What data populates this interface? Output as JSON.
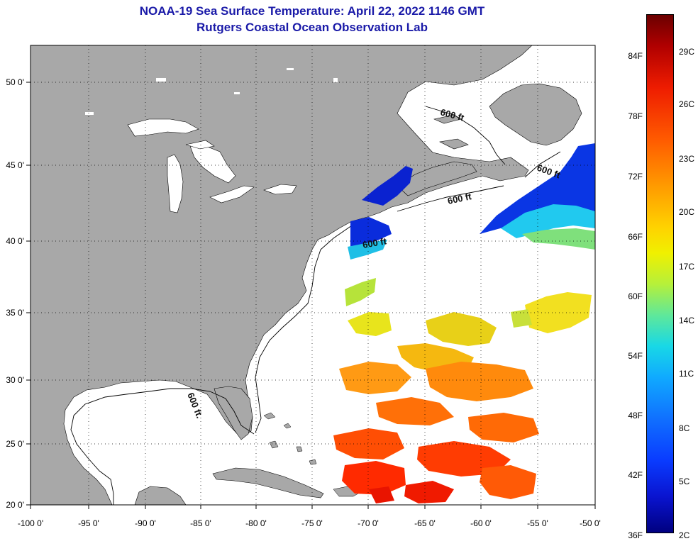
{
  "title": {
    "line1": "NOAA-19 Sea Surface Temperature:  April 22, 2022 1146 GMT",
    "line2": "Rutgers Coastal Ocean Observation Lab"
  },
  "map": {
    "lon_labels": [
      "-100 0'",
      "-95 0'",
      "-90 0'",
      "-85 0'",
      "-80 0'",
      "-75 0'",
      "-70 0'",
      "-65 0'",
      "-60 0'",
      "-55 0'",
      "-50 0'"
    ],
    "lat_labels": [
      "50 0'",
      "45 0'",
      "40 0'",
      "35 0'",
      "30 0'",
      "25 0'",
      "20 0'"
    ],
    "contour_label": "600 ft",
    "contour_label_gulf": "600 ft.",
    "colors": {
      "land": "#a8a8a8",
      "ocean_no_data": "#ffffff",
      "grid": "#000000",
      "title": "#1a1aa8"
    }
  },
  "colorbar": {
    "fahrenheit_labels": [
      "84F",
      "78F",
      "72F",
      "66F",
      "60F",
      "54F",
      "48F",
      "42F",
      "36F"
    ],
    "celsius_labels": [
      "29C",
      "26C",
      "23C",
      "20C",
      "17C",
      "14C",
      "11C",
      "8C",
      "5C",
      "2C"
    ],
    "scale_top_color": "#6b0000",
    "scale_bottom_color": "#000080"
  }
}
